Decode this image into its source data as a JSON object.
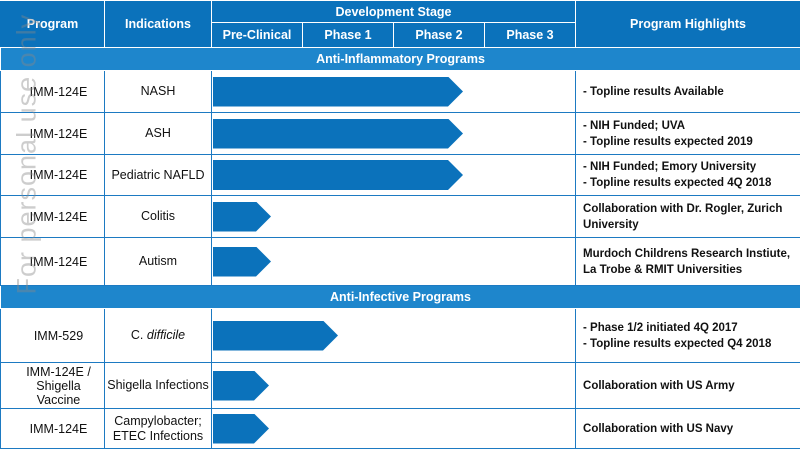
{
  "header": {
    "program": "Program",
    "indications": "Indications",
    "development_stage": "Development Stage",
    "highlights": "Program Highlights",
    "stages": [
      "Pre-Clinical",
      "Phase 1",
      "Phase 2",
      "Phase 3"
    ]
  },
  "sections": [
    {
      "title": "Anti-Inflammatory Programs",
      "rows": [
        {
          "program": "IMM-124E",
          "indication": "NASH",
          "stage_progress": 2.75,
          "highlights": [
            "- Topline results Available"
          ]
        },
        {
          "program": "IMM-124E",
          "indication": "ASH",
          "stage_progress": 2.75,
          "highlights": [
            "- NIH Funded; UVA",
            "- Topline results expected 2019"
          ]
        },
        {
          "program": "IMM-124E",
          "indication": "Pediatric NAFLD",
          "stage_progress": 2.75,
          "highlights": [
            "- NIH Funded; Emory University",
            "- Topline results expected 4Q 2018"
          ]
        },
        {
          "program": "IMM-124E",
          "indication": "Colitis",
          "stage_progress": 0.64,
          "highlights": [
            "Collaboration with Dr. Rogler, Zurich University"
          ]
        },
        {
          "program": "IMM-124E",
          "indication": "Autism",
          "stage_progress": 0.64,
          "highlights": [
            "Murdoch Childrens Research Instiute,",
            "La Trobe & RMIT Universities"
          ]
        }
      ]
    },
    {
      "title": "Anti-Infective Programs",
      "rows": [
        {
          "program": "IMM-529",
          "indication": "C. difficile",
          "stage_progress": 1.37,
          "highlights": [
            "- Phase 1/2 initiated 4Q 2017",
            "- Topline results expected Q4 2018"
          ]
        },
        {
          "program": "IMM-124E / Shigella Vaccine",
          "indication": "Shigella Infections",
          "stage_progress": 0.62,
          "highlights": [
            "Collaboration with US Army"
          ]
        },
        {
          "program": "IMM-124E",
          "indication": "Campylobacter; ETEC Infections",
          "stage_progress": 0.62,
          "highlights": [
            "Collaboration with US Navy"
          ]
        }
      ]
    }
  ],
  "watermark": "For personal use only",
  "colors": {
    "header_bg": "#0b72bb",
    "section_bg": "#1e86cc",
    "arrow": "#0b72bb",
    "border": "#1d7ac2"
  }
}
